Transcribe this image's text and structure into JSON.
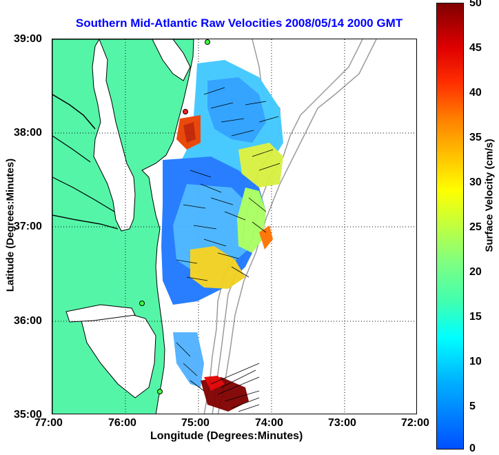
{
  "title": "Southern Mid-Atlantic Raw Velocities 2008/05/14 2000 GMT",
  "x_axis": {
    "label": "Longitude (Degrees:Minutes)",
    "ticks": [
      "77:00",
      "76:00",
      "75:00",
      "74:00",
      "73:00",
      "72:00"
    ]
  },
  "y_axis": {
    "label": "Latitude (Degrees:Minutes)",
    "ticks": [
      "39:00",
      "38:00",
      "37:00",
      "36:00",
      "35:00"
    ]
  },
  "colorbar": {
    "label": "Surface Velocity (cm/s)",
    "ticks": [
      "50",
      "45",
      "40",
      "35",
      "30",
      "25",
      "20",
      "15",
      "10",
      "5",
      "0"
    ],
    "min": 0,
    "max": 50
  },
  "colors": {
    "land": "#55f5a8",
    "coastline": "#000000",
    "bathymetry": "#9a9a9a",
    "title": "#0000ff"
  }
}
